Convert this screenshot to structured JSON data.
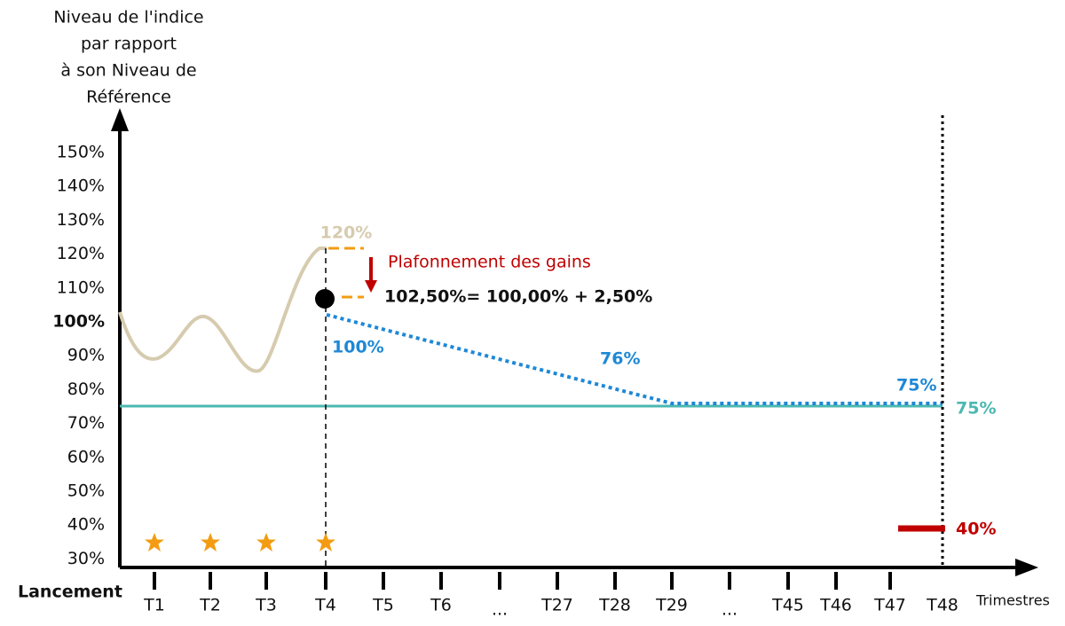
{
  "y_axis": {
    "title": [
      "Niveau de l'indice",
      "par rapport",
      "à son Niveau de",
      "Référence"
    ],
    "ticks": [
      "150%",
      "140%",
      "130%",
      "120%",
      "110%",
      "100%",
      "90%",
      "80%",
      "70%",
      "60%",
      "50%",
      "40%",
      "30%"
    ]
  },
  "x_axis": {
    "start": "Lancement",
    "title": "Trimestres",
    "ticks": [
      "T1",
      "T2",
      "T3",
      "T4",
      "T5",
      "T6",
      "...",
      "T27",
      "T28",
      "T29",
      "...",
      "T45",
      "T46",
      "T47",
      "T48"
    ]
  },
  "annotations": {
    "peak": "120%",
    "cap_title": "Plafonnement des gains",
    "cap_formula": "102,50%= 100,00% + 2,50%",
    "barrier_start": "100%",
    "barrier_mid": "76%",
    "barrier_end": "75%",
    "coupon_barrier": "75%",
    "capital_barrier": "40%"
  }
}
